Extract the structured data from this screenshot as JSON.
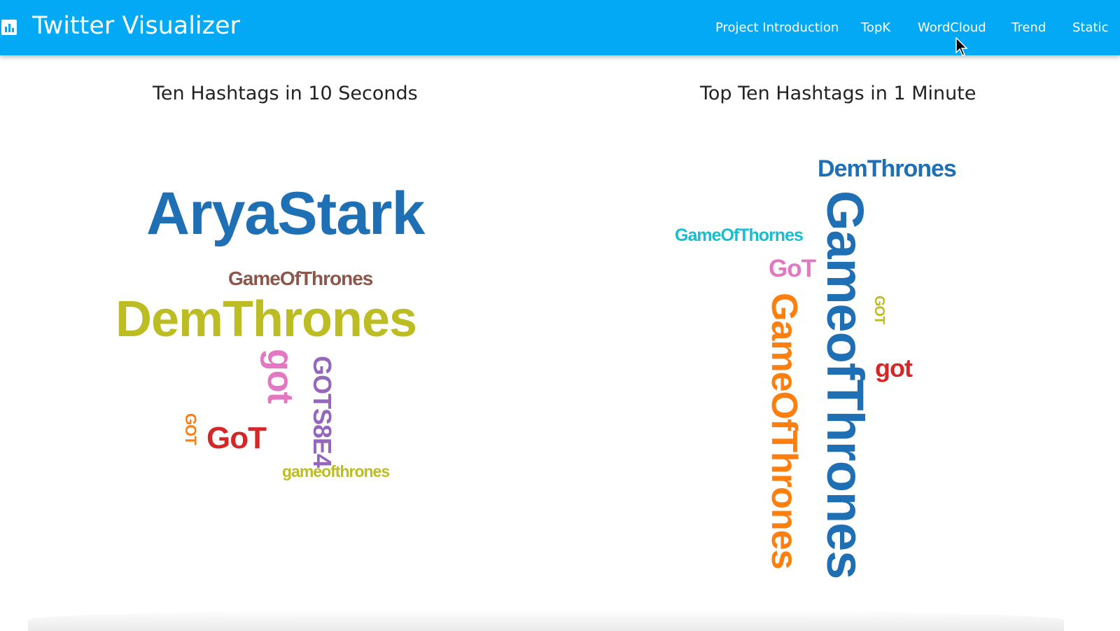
{
  "app": {
    "title": "Twitter Visualizer",
    "brand_icon": "bar-chart-icon",
    "accent_color": "#03a9f4"
  },
  "nav": {
    "items": [
      {
        "label": "Project Introduction"
      },
      {
        "label": "TopK"
      },
      {
        "label": "WordCloud"
      },
      {
        "label": "Trend"
      },
      {
        "label": "Static"
      }
    ]
  },
  "left_cloud": {
    "title": "Ten Hashtags in 10 Seconds",
    "words": [
      {
        "text": "AryaStark",
        "color": "#1f6fb4",
        "orientation": "horizontal"
      },
      {
        "text": "GameOfThrones",
        "color": "#8c564b",
        "orientation": "horizontal"
      },
      {
        "text": "DemThrones",
        "color": "#bcbd22",
        "orientation": "horizontal"
      },
      {
        "text": "got",
        "color": "#e377c2",
        "orientation": "vertical"
      },
      {
        "text": "GOTS8E4",
        "color": "#9467bd",
        "orientation": "vertical"
      },
      {
        "text": "GOT",
        "color": "#ff7f0e",
        "orientation": "vertical"
      },
      {
        "text": "GoT",
        "color": "#d62728",
        "orientation": "horizontal"
      },
      {
        "text": "gameofthrones",
        "color": "#bcbd22",
        "orientation": "horizontal"
      }
    ]
  },
  "right_cloud": {
    "title": "Top Ten Hashtags in 1 Minute",
    "words": [
      {
        "text": "DemThrones",
        "color": "#1f6fb4",
        "orientation": "horizontal"
      },
      {
        "text": "GameOfThornes",
        "color": "#17becf",
        "orientation": "horizontal"
      },
      {
        "text": "GoT",
        "color": "#e377c2",
        "orientation": "horizontal"
      },
      {
        "text": "GameofThrones",
        "color": "#1f6fb4",
        "orientation": "vertical"
      },
      {
        "text": "GameOfThrones",
        "color": "#ff7f0e",
        "orientation": "vertical"
      },
      {
        "text": "GOT",
        "color": "#bcbd22",
        "orientation": "vertical"
      },
      {
        "text": "got",
        "color": "#d62728",
        "orientation": "horizontal"
      }
    ]
  }
}
